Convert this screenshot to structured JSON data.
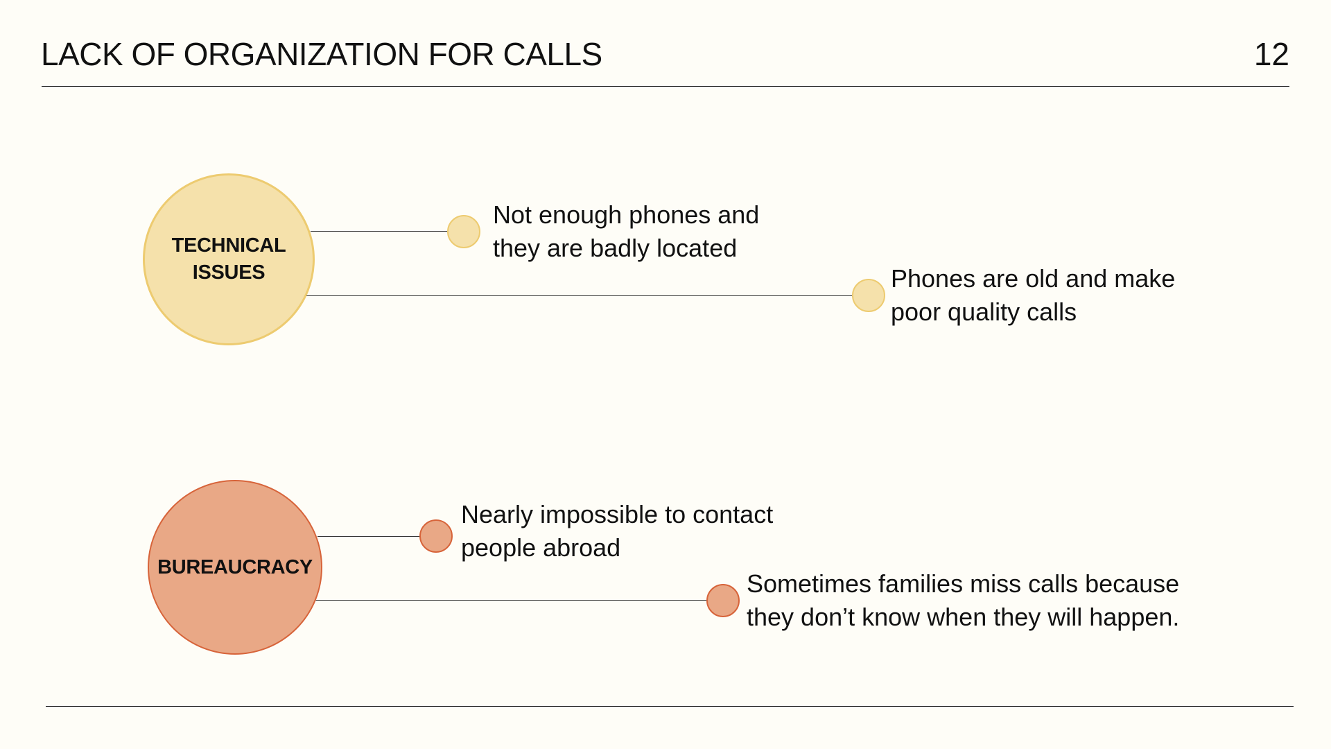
{
  "header": {
    "title": "LACK OF ORGANIZATION FOR CALLS",
    "page_number": "12"
  },
  "colors": {
    "technical_fill": "#F5E1AB",
    "technical_stroke": "#EDCB70",
    "bureaucracy_fill": "#E9A886",
    "bureaucracy_stroke": "#D7643A",
    "background": "#FEFDF7"
  },
  "categories": [
    {
      "name_lines": [
        "TECHNICAL",
        "ISSUES"
      ],
      "items": [
        {
          "lines": [
            "Not enough phones and",
            "they are badly located"
          ]
        },
        {
          "lines": [
            "Phones are old and make",
            "poor quality calls"
          ]
        }
      ]
    },
    {
      "name_lines": [
        "BUREAUCRACY"
      ],
      "items": [
        {
          "lines": [
            "Nearly impossible to contact",
            "people abroad"
          ]
        },
        {
          "lines": [
            "Sometimes families miss calls because",
            "they don’t know when they will happen."
          ]
        }
      ]
    }
  ]
}
